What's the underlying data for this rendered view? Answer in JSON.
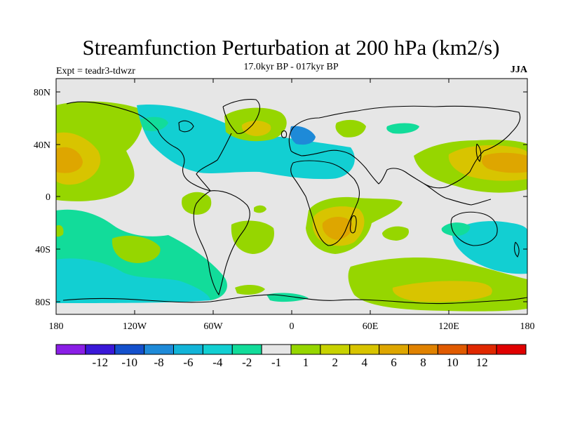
{
  "header": {
    "title": "Streamfunction Perturbation at 200 hPa (km2/s)",
    "subtitle": "17.0kyr BP - 017kyr BP",
    "left_label": "Expt = teadr3-tdwzr",
    "right_label": "JJA"
  },
  "axes": {
    "x_ticks": [
      "180",
      "120W",
      "60W",
      "0",
      "60E",
      "120E",
      "180"
    ],
    "y_ticks": [
      "80N",
      "40N",
      "0",
      "40S",
      "80S"
    ]
  },
  "legend": {
    "colors": [
      "#8a1ee6",
      "#3a18d8",
      "#1450cc",
      "#1e8ad8",
      "#12b4d8",
      "#12cfd2",
      "#12dc9a",
      "#e6e6e6",
      "#96d600",
      "#c8d200",
      "#d8c400",
      "#dea600",
      "#e08200",
      "#e05a00",
      "#e02800",
      "#e00000"
    ],
    "labels": [
      "-12",
      "-10",
      "-8",
      "-6",
      "-4",
      "-2",
      "-1",
      "1",
      "2",
      "4",
      "6",
      "8",
      "10",
      "12"
    ]
  },
  "colors": {
    "background": "#e6e6e6",
    "green": "#96d600",
    "cyan": "#12cfd2",
    "teal": "#12dc9a",
    "olive": "#c8d200",
    "gold": "#d8c400",
    "orange": "#dea600",
    "blue": "#1e8ad8"
  }
}
